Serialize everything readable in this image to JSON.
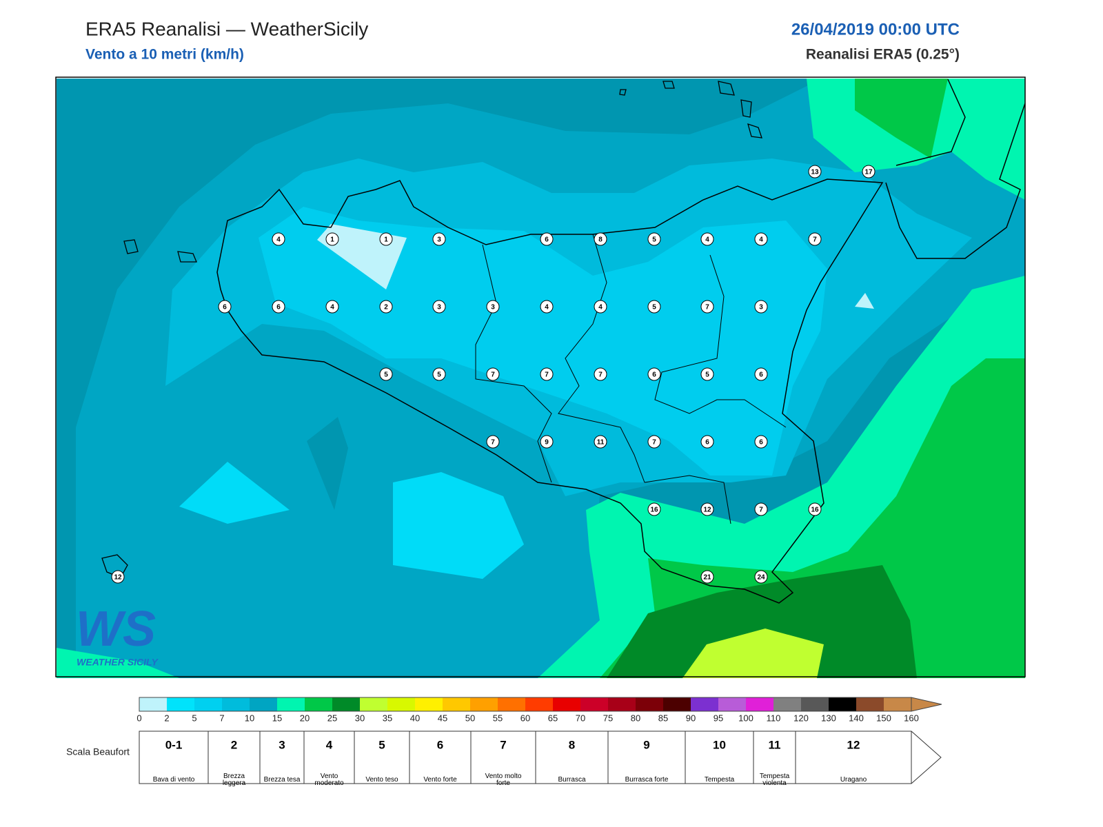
{
  "header": {
    "title": "ERA5 Reanalisi — WeatherSicily",
    "subtitle": "Vento a 10 metri (km/h)",
    "date": "26/04/2019 00:00 UTC",
    "model": "Reanalisi ERA5 (0.25°)"
  },
  "logo": {
    "mark": "WS",
    "text": "WEATHER SICILY"
  },
  "stations": [
    13,
    17,
    4,
    1,
    1,
    3,
    6,
    8,
    5,
    4,
    4,
    7,
    6,
    6,
    4,
    2,
    3,
    3,
    4,
    4,
    5,
    7,
    3,
    5,
    5,
    7,
    7,
    7,
    6,
    5,
    6,
    7,
    9,
    11,
    7,
    6,
    6,
    16,
    12,
    7,
    16,
    12,
    21,
    24
  ],
  "legend": {
    "ticks": [
      0,
      2,
      5,
      7,
      10,
      15,
      20,
      25,
      30,
      35,
      40,
      45,
      50,
      55,
      60,
      65,
      70,
      75,
      80,
      85,
      90,
      95,
      100,
      110,
      120,
      130,
      140,
      150,
      160
    ],
    "colors": [
      "#bff3fb",
      "#00e3fb",
      "#00d0f0",
      "#00bcdc",
      "#00a5c2",
      "#00f5b0",
      "#00c848",
      "#008a28",
      "#c0ff30",
      "#d8f800",
      "#fff000",
      "#ffc800",
      "#ffa000",
      "#ff7000",
      "#ff3c00",
      "#e80000",
      "#cc0028",
      "#a80018",
      "#7c0008",
      "#4c0000",
      "#7c30d0",
      "#b85cd8",
      "#e020d8",
      "#808080",
      "#585858",
      "#000000",
      "#8b4a2a",
      "#c88848"
    ]
  },
  "beaufort": {
    "title": "Scala Beaufort",
    "levels": [
      {
        "number": "0-1",
        "label": "Bava di vento"
      },
      {
        "number": "2",
        "label": "Brezza leggera"
      },
      {
        "number": "3",
        "label": "Brezza tesa"
      },
      {
        "number": "4",
        "label": "Vento moderato"
      },
      {
        "number": "5",
        "label": "Vento teso"
      },
      {
        "number": "6",
        "label": "Vento forte"
      },
      {
        "number": "7",
        "label": "Vento molto forte"
      },
      {
        "number": "8",
        "label": "Burrasca"
      },
      {
        "number": "9",
        "label": "Burrasca forte"
      },
      {
        "number": "10",
        "label": "Tempesta"
      },
      {
        "number": "11",
        "label": "Tempesta violenta"
      },
      {
        "number": "12",
        "label": "Uragano"
      }
    ]
  }
}
